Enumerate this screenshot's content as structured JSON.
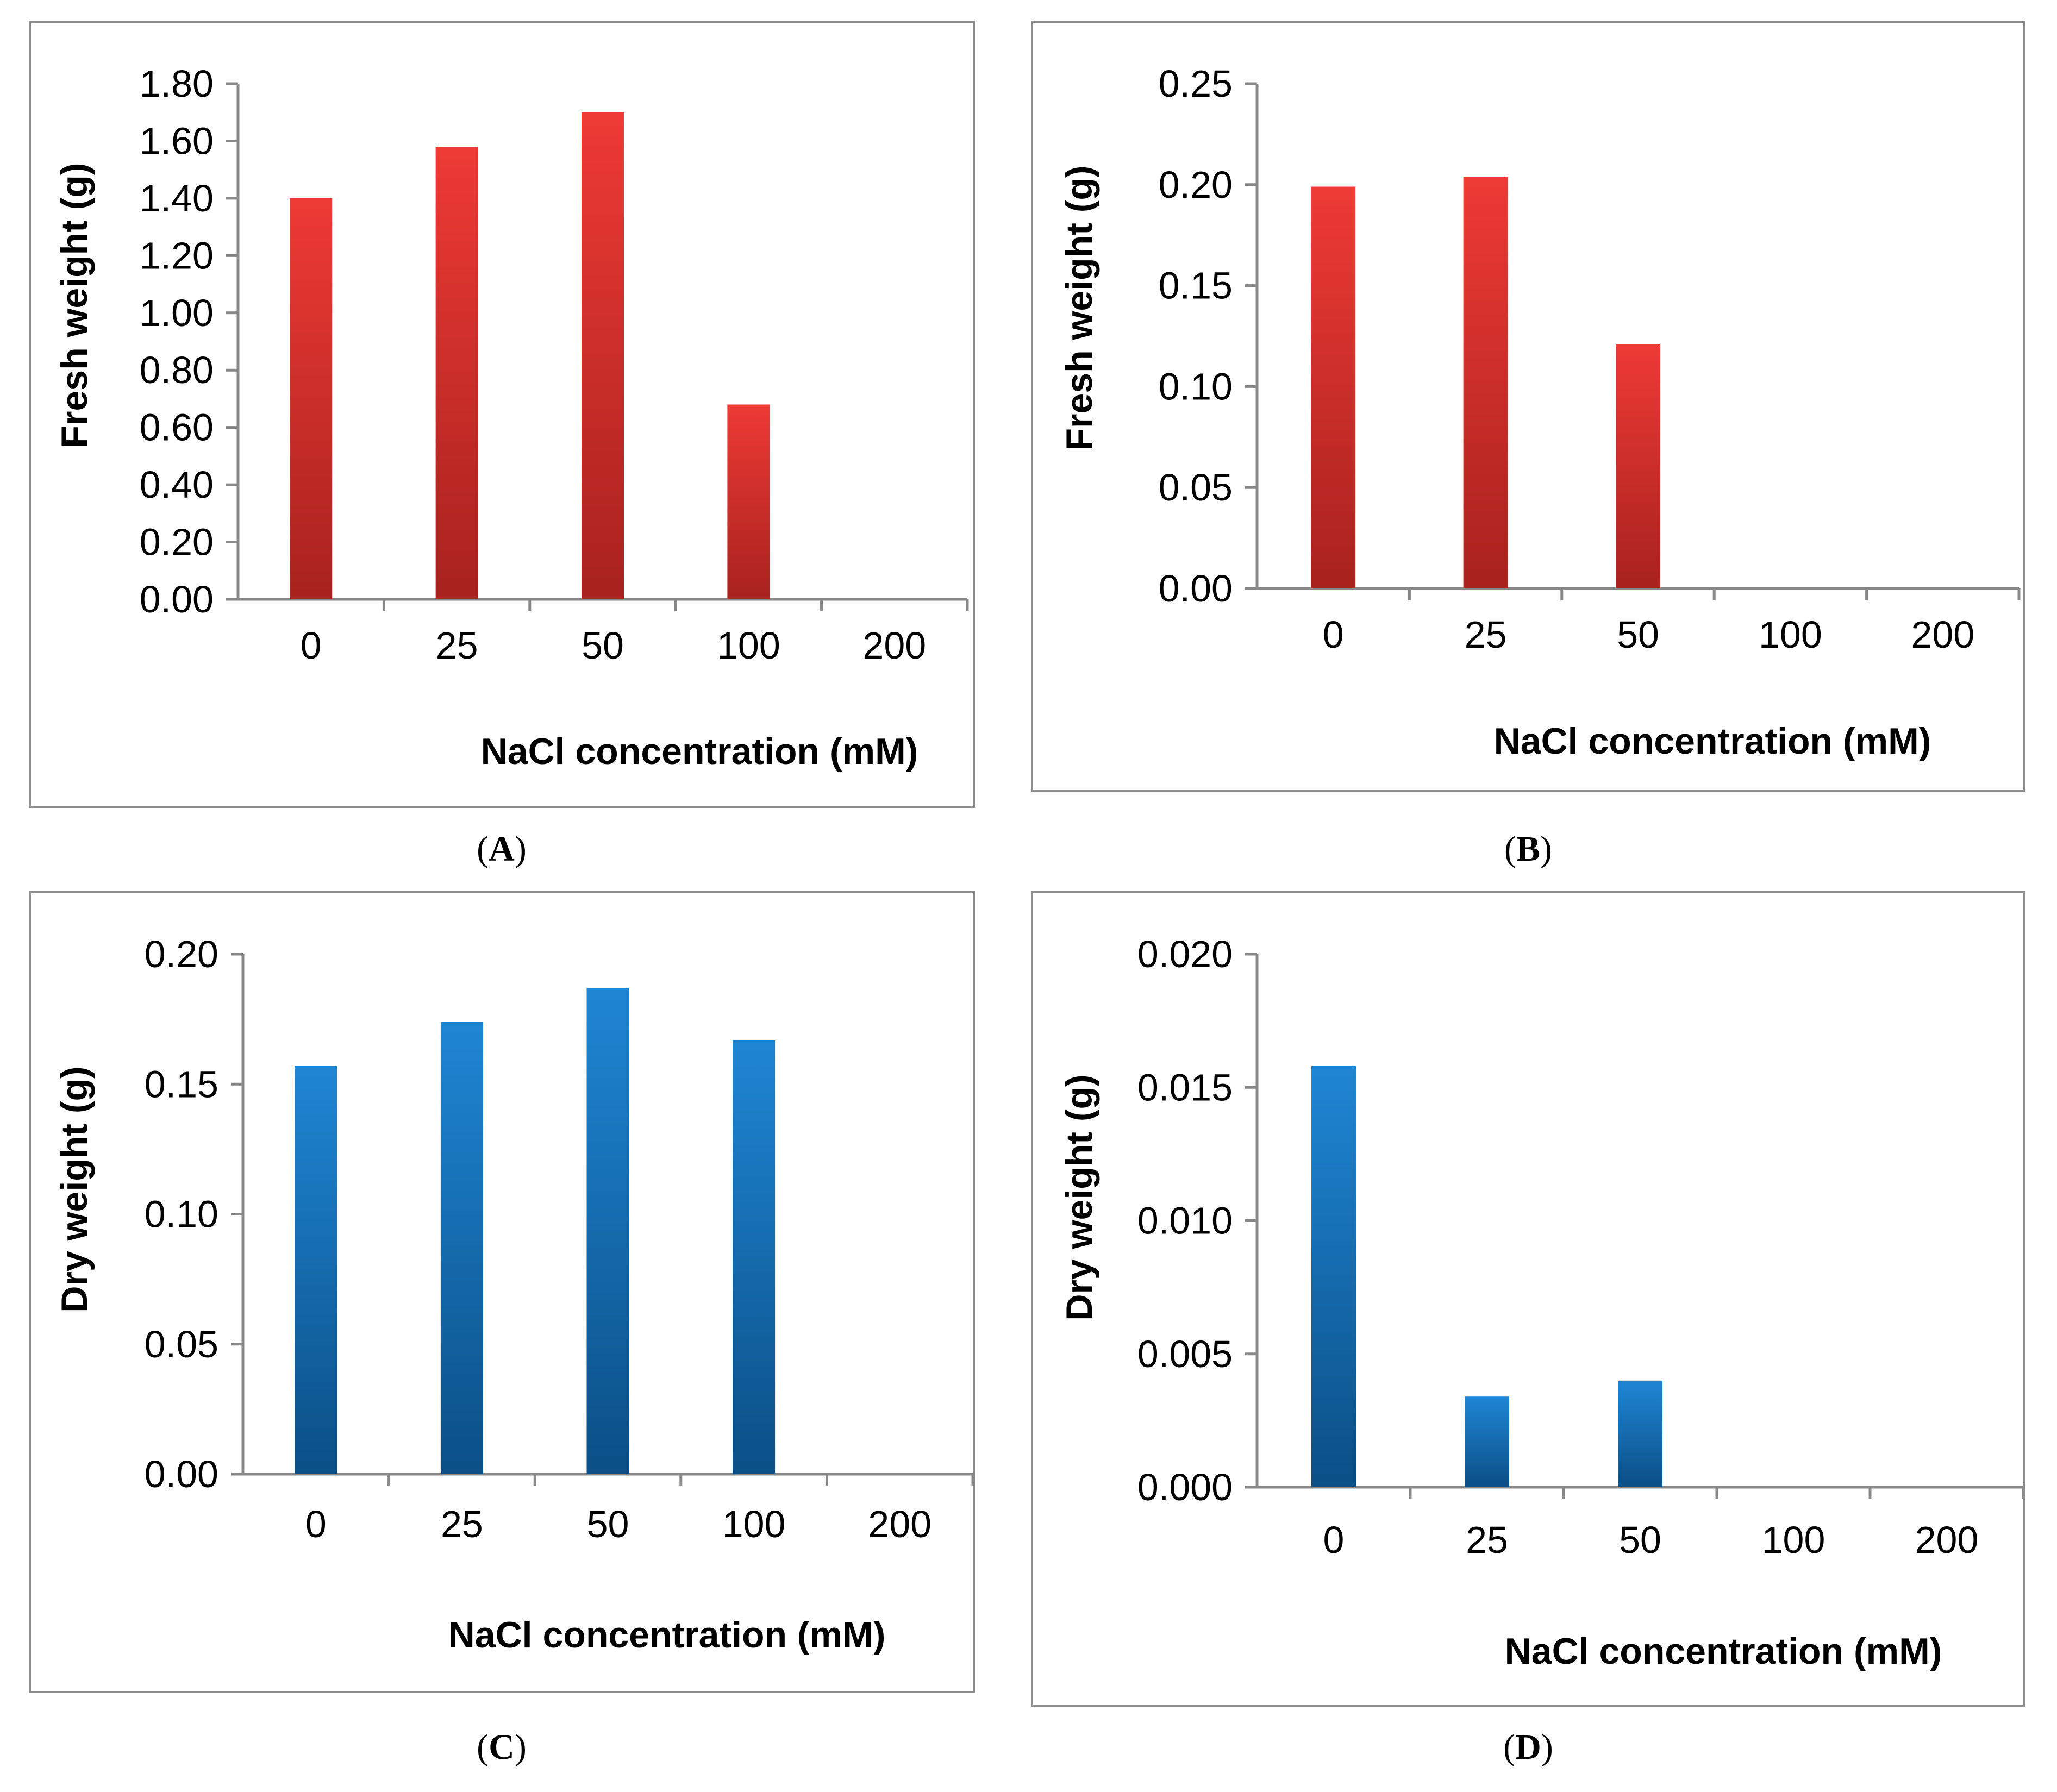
{
  "colors": {
    "red_top": "#ee3a35",
    "red_bottom": "#a8221e",
    "blue_top": "#1f86d4",
    "blue_bottom": "#0b4f86",
    "axis": "#888888",
    "border": "#8c8c8c"
  },
  "captions": {
    "a": {
      "open": "(",
      "letter": "A",
      "close": ")"
    },
    "b": {
      "open": "(",
      "letter": "B",
      "close": ")"
    },
    "c": {
      "open": "(",
      "letter": "C",
      "close": ")"
    },
    "d": {
      "open": "(",
      "letter": "D",
      "close": ")"
    }
  },
  "chart_data": [
    {
      "id": "a",
      "type": "bar",
      "title": "",
      "xlabel": "NaCl concentration (mM)",
      "ylabel": "Fresh weight (g)",
      "categories": [
        "0",
        "25",
        "50",
        "100",
        "200"
      ],
      "values": [
        1.4,
        1.58,
        1.7,
        0.68,
        0
      ],
      "ylim": [
        0,
        1.8
      ],
      "yticks": [
        "0.00",
        "0.20",
        "0.40",
        "0.60",
        "0.80",
        "1.00",
        "1.20",
        "1.40",
        "1.60",
        "1.80"
      ],
      "color": "red",
      "grid": false
    },
    {
      "id": "b",
      "type": "bar",
      "title": "",
      "xlabel": "NaCl concentration (mM)",
      "ylabel": "Fresh weight (g)",
      "categories": [
        "0",
        "25",
        "50",
        "100",
        "200"
      ],
      "values": [
        0.199,
        0.204,
        0.121,
        0,
        0
      ],
      "ylim": [
        0,
        0.25
      ],
      "yticks": [
        "0.00",
        "0.05",
        "0.10",
        "0.15",
        "0.20",
        "0.25"
      ],
      "color": "red",
      "grid": false
    },
    {
      "id": "c",
      "type": "bar",
      "title": "",
      "xlabel": "NaCl concentration (mM)",
      "ylabel": "Dry weight (g)",
      "categories": [
        "0",
        "25",
        "50",
        "100",
        "200"
      ],
      "values": [
        0.157,
        0.174,
        0.187,
        0.167,
        0
      ],
      "ylim": [
        0,
        0.2
      ],
      "yticks": [
        "0.00",
        "0.05",
        "0.10",
        "0.15",
        "0.20"
      ],
      "color": "blue",
      "grid": false
    },
    {
      "id": "d",
      "type": "bar",
      "title": "",
      "xlabel": "NaCl concentration (mM)",
      "ylabel": "Dry weight (g)",
      "categories": [
        "0",
        "25",
        "50",
        "100",
        "200"
      ],
      "values": [
        0.0158,
        0.0034,
        0.004,
        0,
        0
      ],
      "ylim": [
        0,
        0.02
      ],
      "yticks": [
        "0.000",
        "0.005",
        "0.010",
        "0.015",
        "0.020"
      ],
      "color": "blue",
      "grid": false
    }
  ]
}
